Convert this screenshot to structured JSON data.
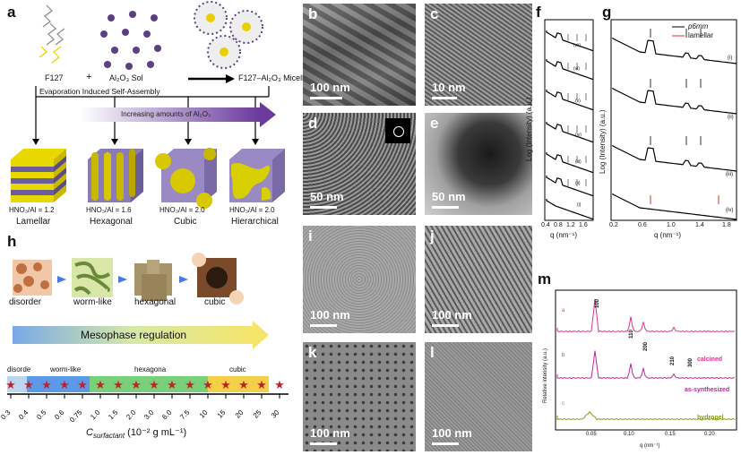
{
  "panel_a": {
    "label": "a",
    "f127": "F127",
    "plus": "+",
    "sol": "Al₂O₃ Sol",
    "micelles": "F127–Al₂O₃ Micelles",
    "eisa": "Evaporation Induced Self-Assembly",
    "increasing": "Increasing amounts of Al₂O₃",
    "structures": [
      {
        "ratio": "HNO₃/Al = 1.2",
        "name": "Lamellar"
      },
      {
        "ratio": "HNO₃/Al = 1.6",
        "name": "Hexagonal"
      },
      {
        "ratio": "HNO₃/Al = 2.0",
        "name": "Cubic"
      },
      {
        "ratio": "HNO₃/Al = 2.0",
        "name": "Hierarchical"
      }
    ]
  },
  "panel_h": {
    "label": "h",
    "phases": [
      "disorder",
      "worm-like",
      "hexagonal",
      "cubic"
    ],
    "regulation": "Mesophase regulation",
    "bands": [
      "disorde",
      "worm-like",
      "hexagona",
      "cubic"
    ],
    "ticks": [
      "0.3",
      "0.4",
      "0.5",
      "0.6",
      "0.75",
      "1.0",
      "1.5",
      "2.0",
      "3.0",
      "6.0",
      "7.5",
      "10",
      "15",
      "20",
      "25",
      "30"
    ],
    "axis_label": "C",
    "axis_sub": "surfactant",
    "axis_unit": " (10⁻² g mL⁻¹)"
  },
  "tem": [
    {
      "label": "b",
      "scale": "100 nm"
    },
    {
      "label": "c",
      "scale": "10 nm"
    },
    {
      "label": "d",
      "scale": "50 nm"
    },
    {
      "label": "e",
      "scale": "50 nm"
    },
    {
      "label": "i",
      "scale": "100 nm"
    },
    {
      "label": "j",
      "scale": "100 nm"
    },
    {
      "label": "k",
      "scale": "100 nm"
    },
    {
      "label": "l",
      "scale": "100 nm"
    }
  ],
  "panel_f": {
    "label": "f",
    "ylabel": "Log (Intensity) (a.u.)",
    "xlabel": "q (nm⁻¹)",
    "xticks": [
      "0.4",
      "0.8",
      "1.2",
      "1.6"
    ],
    "curves": [
      "(vii)",
      "(vi)",
      "(v)",
      "(iv)",
      "(iii)",
      "(ii)",
      "(i)"
    ]
  },
  "panel_g": {
    "label": "g",
    "ylabel": "Log (Intensity) (a.u.)",
    "xlabel": "q (nm⁻¹)",
    "xticks": [
      "0.2",
      "0.6",
      "1.0",
      "1.4",
      "1.8"
    ],
    "legend": [
      "p6mm",
      "lamellar"
    ],
    "curves": [
      "(i)",
      "(ii)",
      "(iii)",
      "(iv)"
    ],
    "colors": {
      "p6mm": "#000000",
      "lamellar": "#e0302a"
    }
  },
  "panel_m": {
    "label": "m",
    "ylabel": "Relative intensity (a.u.)",
    "xlabel": "q (nm⁻¹)",
    "xticks": [
      "0.05",
      "0.10",
      "0.15",
      "0.20"
    ],
    "peaks": [
      "100",
      "110",
      "200",
      "210",
      "300"
    ],
    "curves": [
      {
        "tag": "a",
        "name": "calcined",
        "color": "#e0348a"
      },
      {
        "tag": "b",
        "name": "as-synthesized",
        "color": "#c0269a"
      },
      {
        "tag": "c",
        "name": "hydrogel",
        "color": "#8a9a1a"
      }
    ]
  }
}
